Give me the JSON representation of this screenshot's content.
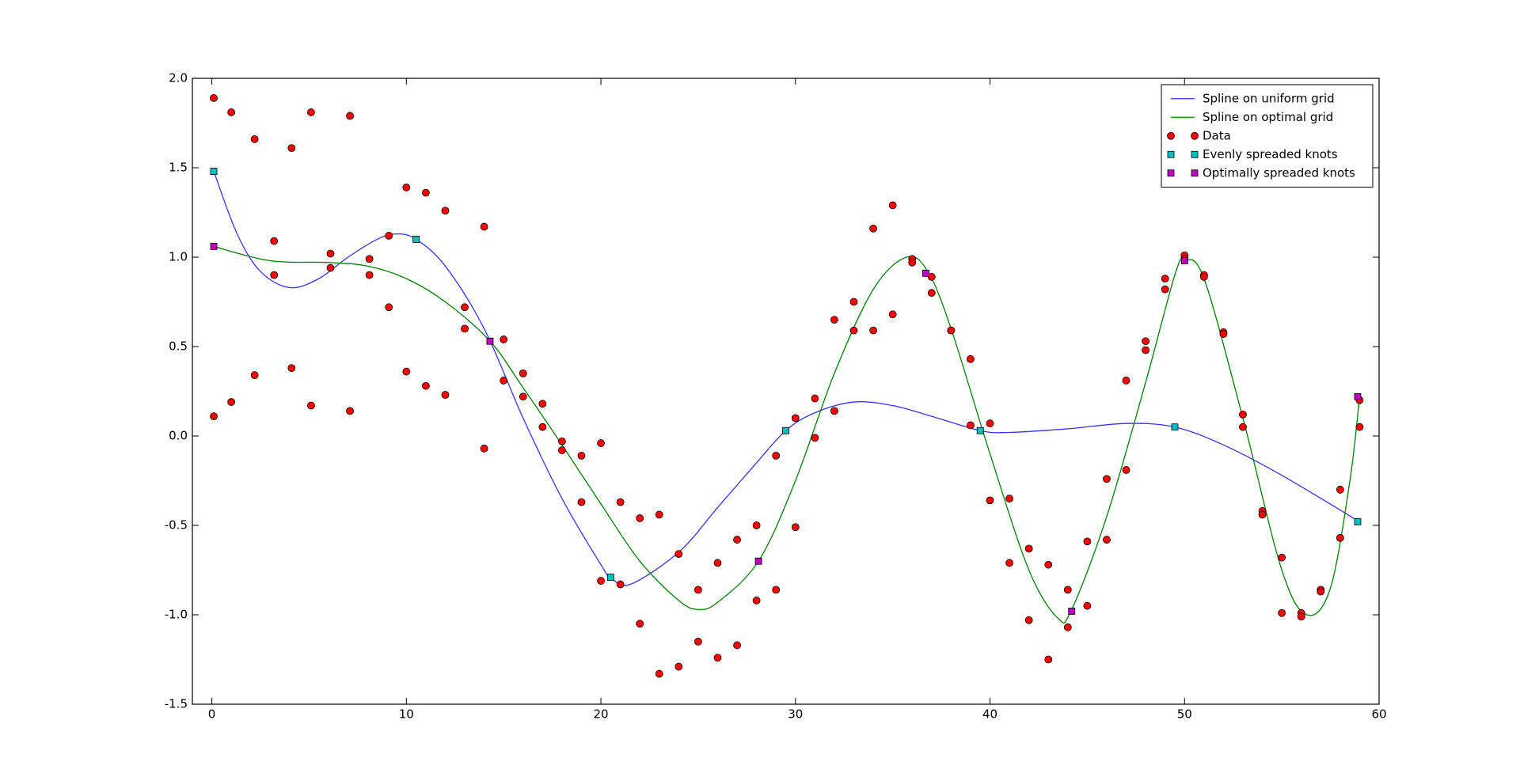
{
  "chart_data": {
    "type": "line",
    "xlim": [
      -1,
      60
    ],
    "ylim": [
      -1.5,
      2.0
    ],
    "xticks": [
      0,
      10,
      20,
      30,
      40,
      50,
      60
    ],
    "yticks": [
      -1.5,
      {
        "value": -1.0,
        "label": "-1.0"
      },
      -0.5,
      {
        "value": 0.0,
        "label": "0.0"
      },
      0.5,
      {
        "value": 1.0,
        "label": "1.0"
      },
      1.5,
      {
        "value": 2.0,
        "label": "2.0"
      }
    ],
    "legend": "upper right",
    "series": [
      {
        "name": "Spline on uniform grid",
        "color": "#3333ff",
        "mode": "line",
        "x": [
          0.1,
          1.3,
          2.5,
          4,
          5.5,
          7,
          8.5,
          9.5,
          10.5,
          12,
          14,
          16,
          18,
          20,
          20.5,
          21.5,
          24,
          26,
          28,
          29.5,
          31,
          33,
          35,
          37,
          39.5,
          41,
          44,
          47,
          49.5,
          52,
          55,
          59
        ],
        "values": [
          1.48,
          1.13,
          0.92,
          0.83,
          0.88,
          1.0,
          1.1,
          1.13,
          1.1,
          0.95,
          0.6,
          0.1,
          -0.35,
          -0.72,
          -0.79,
          -0.83,
          -0.65,
          -0.4,
          -0.15,
          0.03,
          0.13,
          0.19,
          0.17,
          0.11,
          0.03,
          0.02,
          0.04,
          0.07,
          0.05,
          -0.05,
          -0.22,
          -0.48
        ]
      },
      {
        "name": "Spline on optimal grid",
        "color": "#008000",
        "mode": "line",
        "x": [
          0.1,
          3,
          6,
          8,
          10,
          12,
          14.3,
          16,
          18,
          20,
          22,
          24,
          25,
          26,
          28.1,
          30,
          32,
          34,
          35.7,
          36.8,
          38,
          40,
          42,
          43.5,
          44.2,
          46,
          48,
          49.5,
          50,
          51,
          53,
          55,
          56.3,
          57.5,
          58.5,
          59
        ],
        "values": [
          1.06,
          0.98,
          0.97,
          0.95,
          0.88,
          0.75,
          0.53,
          0.27,
          -0.05,
          -0.38,
          -0.7,
          -0.92,
          -0.97,
          -0.93,
          -0.7,
          -0.25,
          0.35,
          0.82,
          1.0,
          0.92,
          0.6,
          -0.1,
          -0.75,
          -1.02,
          -0.97,
          -0.45,
          0.3,
          0.9,
          0.98,
          0.88,
          0.1,
          -0.75,
          -1.0,
          -0.85,
          -0.25,
          0.22
        ]
      },
      {
        "name": "Data",
        "color": "#ff0000",
        "mode": "markers",
        "marker": "circle",
        "x": [
          0.1,
          0.1,
          1,
          1,
          2.2,
          2.2,
          3.2,
          3.2,
          4.1,
          4.1,
          5.1,
          5.1,
          6.1,
          6.1,
          7.1,
          7.1,
          8.1,
          8.1,
          9.1,
          9.1,
          10,
          10,
          11,
          11,
          12,
          12,
          13,
          13,
          14,
          14,
          15,
          15,
          16,
          16,
          17,
          17,
          18,
          18,
          19,
          19,
          20,
          20,
          21,
          21,
          22,
          22,
          23,
          23,
          24,
          24,
          25,
          25,
          26,
          26,
          27,
          27,
          28,
          28,
          29,
          29,
          30,
          30,
          31,
          31,
          32,
          32,
          33,
          33,
          34,
          34,
          35,
          35,
          36,
          36,
          37,
          37,
          38,
          38,
          39,
          39,
          40,
          40,
          41,
          41,
          42,
          42,
          43,
          43,
          44,
          44,
          45,
          45,
          46,
          46,
          47,
          47,
          48,
          48,
          49,
          49,
          50,
          50,
          51,
          51,
          52,
          52,
          53,
          53,
          54,
          54,
          55,
          55,
          56,
          56,
          57,
          57,
          58,
          58,
          59,
          59
        ],
        "values": [
          1.89,
          0.11,
          1.81,
          0.19,
          1.66,
          0.34,
          1.09,
          0.9,
          1.61,
          0.38,
          1.81,
          0.17,
          1.02,
          0.94,
          1.79,
          0.14,
          0.99,
          0.9,
          1.12,
          0.72,
          1.39,
          0.36,
          1.36,
          0.28,
          1.26,
          0.23,
          0.72,
          0.6,
          1.17,
          -0.07,
          0.54,
          0.31,
          0.35,
          0.22,
          0.18,
          0.05,
          -0.03,
          -0.08,
          -0.11,
          -0.37,
          -0.04,
          -0.81,
          -0.37,
          -0.83,
          -0.46,
          -1.05,
          -0.44,
          -1.33,
          -0.66,
          -1.29,
          -0.86,
          -1.15,
          -0.71,
          -1.24,
          -0.58,
          -1.17,
          -0.5,
          -0.92,
          -0.11,
          -0.86,
          0.1,
          -0.51,
          0.21,
          -0.01,
          0.65,
          0.14,
          0.75,
          0.59,
          1.16,
          0.59,
          1.29,
          0.68,
          0.99,
          0.97,
          0.89,
          0.8,
          0.59,
          0.59,
          0.43,
          0.06,
          0.07,
          -0.36,
          -0.35,
          -0.71,
          -0.63,
          -1.03,
          -0.72,
          -1.25,
          -0.86,
          -1.07,
          -0.59,
          -0.95,
          -0.24,
          -0.58,
          0.31,
          -0.19,
          0.53,
          0.48,
          0.88,
          0.82,
          1.01,
          0.99,
          0.9,
          0.89,
          0.58,
          0.57,
          0.12,
          0.05,
          -0.42,
          -0.44,
          -0.68,
          -0.99,
          -0.99,
          -1.01,
          -0.86,
          -0.87,
          -0.3,
          -0.57,
          0.2,
          0.05
        ]
      },
      {
        "name": "Evenly spreaded knots",
        "color": "#00bfbf",
        "mode": "markers",
        "marker": "square",
        "x": [
          0.1,
          10.5,
          20.5,
          29.5,
          39.5,
          49.5,
          58.9
        ],
        "values": [
          1.48,
          1.1,
          -0.79,
          0.03,
          0.03,
          0.05,
          -0.48
        ]
      },
      {
        "name": "Optimally spreaded knots",
        "color": "#bf00bf",
        "mode": "markers",
        "marker": "square",
        "x": [
          0.1,
          14.3,
          28.1,
          36.7,
          44.2,
          50.0,
          58.9
        ],
        "values": [
          1.06,
          0.53,
          -0.7,
          0.91,
          -0.98,
          0.98,
          0.22
        ]
      }
    ]
  }
}
